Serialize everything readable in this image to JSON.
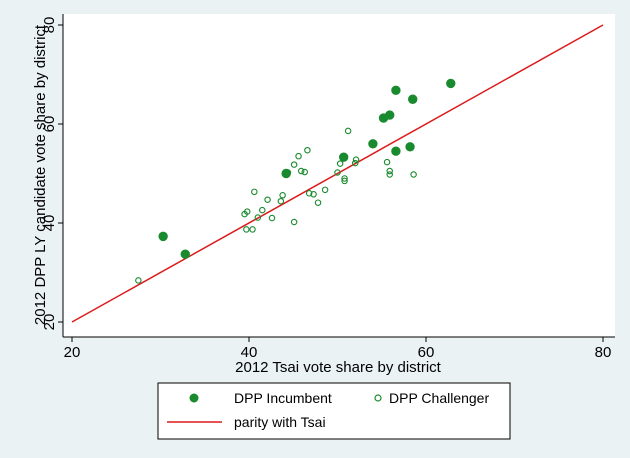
{
  "chart_data": {
    "type": "scatter",
    "xlabel": "2012 Tsai vote share by district",
    "ylabel": "2012 DPP LY candidate vote share by district",
    "xlim": [
      20,
      80
    ],
    "ylim": [
      20,
      80
    ],
    "xticks": [
      "20",
      "40",
      "60",
      "80"
    ],
    "yticks": [
      "20",
      "40",
      "60",
      "80"
    ],
    "grid": false,
    "legend_position": "bottom",
    "colors": {
      "points": "#1a8a2e",
      "line": "#dd1a1a",
      "background": "#eaf2f3",
      "plot_bg": "#ffffff"
    },
    "series": [
      {
        "name": "DPP Incumbent",
        "marker": "filled-circle",
        "points": [
          [
            30.3,
            37.3
          ],
          [
            32.8,
            33.7
          ],
          [
            44.2,
            50.0
          ],
          [
            50.7,
            53.3
          ],
          [
            54.0,
            56.0
          ],
          [
            55.2,
            61.2
          ],
          [
            55.9,
            61.8
          ],
          [
            56.6,
            66.8
          ],
          [
            56.6,
            54.5
          ],
          [
            58.2,
            55.4
          ],
          [
            58.5,
            65.0
          ],
          [
            62.8,
            68.2
          ]
        ]
      },
      {
        "name": "DPP Challenger",
        "marker": "hollow-circle",
        "points": [
          [
            27.5,
            28.4
          ],
          [
            39.5,
            41.8
          ],
          [
            39.8,
            42.3
          ],
          [
            39.7,
            38.7
          ],
          [
            40.4,
            38.7
          ],
          [
            40.6,
            46.3
          ],
          [
            41.0,
            41.1
          ],
          [
            41.5,
            42.6
          ],
          [
            42.1,
            44.7
          ],
          [
            42.6,
            41.0
          ],
          [
            43.8,
            45.6
          ],
          [
            43.6,
            44.4
          ],
          [
            44.4,
            50.2
          ],
          [
            45.1,
            51.8
          ],
          [
            45.1,
            40.2
          ],
          [
            45.6,
            53.5
          ],
          [
            45.9,
            50.5
          ],
          [
            46.3,
            50.3
          ],
          [
            46.6,
            54.7
          ],
          [
            46.8,
            46.0
          ],
          [
            47.3,
            45.8
          ],
          [
            47.8,
            44.1
          ],
          [
            48.6,
            46.7
          ],
          [
            50.0,
            50.2
          ],
          [
            50.3,
            52.0
          ],
          [
            50.8,
            49.0
          ],
          [
            50.8,
            48.5
          ],
          [
            51.2,
            58.6
          ],
          [
            52.0,
            52.1
          ],
          [
            52.1,
            52.8
          ],
          [
            55.6,
            52.3
          ],
          [
            55.9,
            50.5
          ],
          [
            55.9,
            49.8
          ],
          [
            58.6,
            49.8
          ]
        ]
      },
      {
        "name": "parity with Tsai",
        "type": "line",
        "points": [
          [
            20,
            20
          ],
          [
            80,
            80
          ]
        ]
      }
    ]
  }
}
